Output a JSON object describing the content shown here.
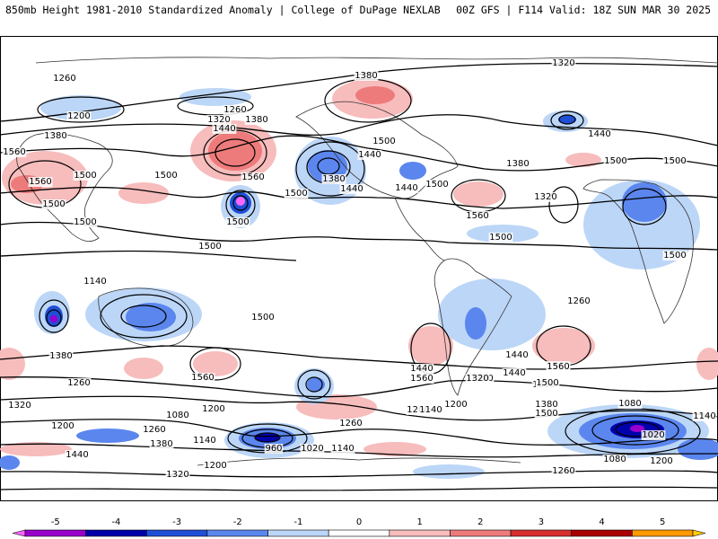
{
  "header": {
    "left": "850mb Height 1981-2010 Standardized Anomaly | College of DuPage NEXLAB",
    "right": "00Z GFS | F114 Valid: 18Z SUN MAR 30 2025"
  },
  "colorbar": {
    "ticks": [
      "-5",
      "-4",
      "-3",
      "-2",
      "-1",
      "0",
      "1",
      "2",
      "3",
      "4",
      "5"
    ],
    "colors": [
      "#ff66ff",
      "#9900cc",
      "#0000aa",
      "#1f4fd6",
      "#5b86ee",
      "#bcd6f7",
      "#ffffff",
      "#f7bcbc",
      "#ee7b7b",
      "#d62d2d",
      "#aa0000",
      "#ff9900",
      "#ffcc00"
    ]
  },
  "contours": {
    "labels": [
      {
        "t": "1320"
      },
      {
        "t": "1380"
      },
      {
        "t": "1260"
      },
      {
        "t": "1200"
      },
      {
        "t": "1260"
      },
      {
        "t": "1320"
      },
      {
        "t": "1380"
      },
      {
        "t": "1440"
      },
      {
        "t": "1380"
      },
      {
        "t": "1560"
      },
      {
        "t": "1560"
      },
      {
        "t": "1500"
      },
      {
        "t": "1500"
      },
      {
        "t": "1500"
      },
      {
        "t": "1560"
      },
      {
        "t": "1500"
      },
      {
        "t": "1440"
      },
      {
        "t": "1380"
      },
      {
        "t": "1440"
      },
      {
        "t": "1500"
      },
      {
        "t": "1560"
      },
      {
        "t": "1380"
      },
      {
        "t": "1320"
      },
      {
        "t": "1440"
      },
      {
        "t": "1500"
      },
      {
        "t": "1440"
      },
      {
        "t": "1500"
      },
      {
        "t": "1500"
      },
      {
        "t": "1500"
      },
      {
        "t": "1500"
      },
      {
        "t": "1500"
      },
      {
        "t": "1500"
      },
      {
        "t": "1500"
      },
      {
        "t": "1500"
      },
      {
        "t": "1260"
      },
      {
        "t": "1140"
      },
      {
        "t": "1320"
      },
      {
        "t": "1440"
      },
      {
        "t": "1380"
      },
      {
        "t": "1560"
      },
      {
        "t": "1560"
      },
      {
        "t": "1440"
      },
      {
        "t": "1320"
      },
      {
        "t": "1380"
      },
      {
        "t": "1500"
      },
      {
        "t": "1560"
      },
      {
        "t": "1500"
      },
      {
        "t": "1380"
      },
      {
        "t": "1260"
      },
      {
        "t": "1200"
      },
      {
        "t": "1080"
      },
      {
        "t": "1200"
      },
      {
        "t": "1380"
      },
      {
        "t": "1260"
      },
      {
        "t": "1140"
      },
      {
        "t": "1440"
      },
      {
        "t": "1200"
      },
      {
        "t": "1320"
      },
      {
        "t": "960"
      },
      {
        "t": "1020"
      },
      {
        "t": "1140"
      },
      {
        "t": "1200"
      },
      {
        "t": "1260"
      },
      {
        "t": "1200"
      },
      {
        "t": "1140"
      },
      {
        "t": "1080"
      },
      {
        "t": "1020"
      },
      {
        "t": "1200"
      },
      {
        "t": "1260"
      },
      {
        "t": "1080"
      },
      {
        "t": "1140"
      },
      {
        "t": "1320"
      },
      {
        "t": "1440"
      },
      {
        "t": "1560"
      },
      {
        "t": "1500"
      }
    ]
  }
}
